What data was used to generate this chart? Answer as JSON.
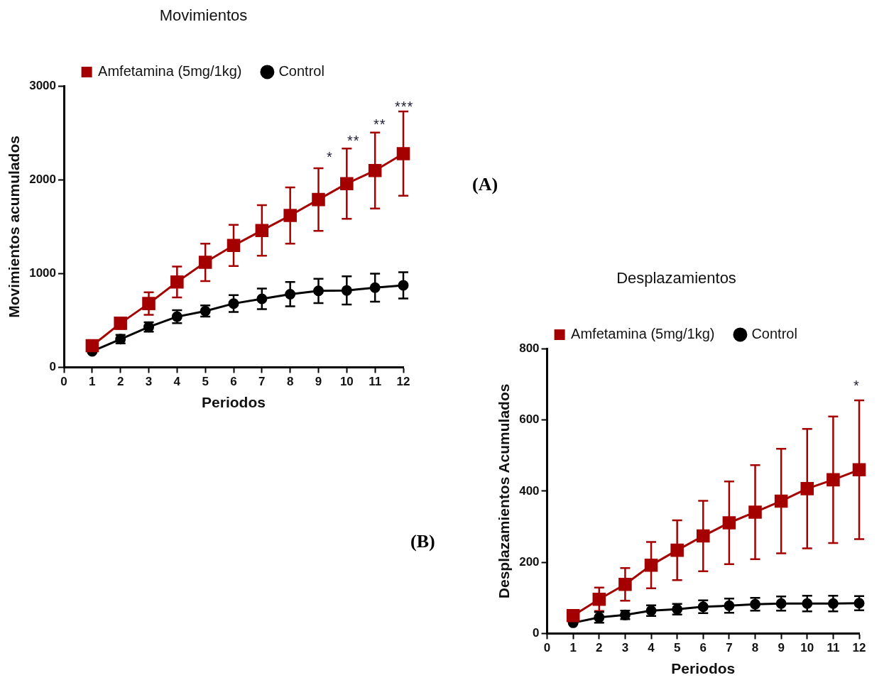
{
  "chart_data": [
    {
      "type": "line",
      "title": "Movimientos",
      "xlabel": "Periodos",
      "ylabel": "Movimientos acumulados",
      "x": [
        1,
        2,
        3,
        4,
        5,
        6,
        7,
        8,
        9,
        10,
        11,
        12
      ],
      "series": [
        {
          "name": "Amfetamina (5mg/1kg)",
          "color": "#a50000",
          "marker": "square",
          "values": [
            230,
            470,
            680,
            910,
            1120,
            1300,
            1460,
            1620,
            1790,
            1960,
            2100,
            2280
          ],
          "errors": [
            null,
            60,
            120,
            165,
            200,
            220,
            270,
            300,
            335,
            375,
            405,
            450
          ]
        },
        {
          "name": "Control",
          "color": "#000000",
          "marker": "circle",
          "values": [
            170,
            300,
            430,
            540,
            600,
            680,
            730,
            780,
            815,
            820,
            850,
            875
          ],
          "errors": [
            null,
            45,
            50,
            70,
            60,
            90,
            110,
            130,
            130,
            150,
            150,
            140
          ]
        }
      ],
      "xlim": [
        0,
        12
      ],
      "xticks": [
        0,
        1,
        2,
        3,
        4,
        5,
        6,
        7,
        8,
        9,
        10,
        11,
        12
      ],
      "ylim": [
        0,
        3000
      ],
      "yticks": [
        0,
        1000,
        2000,
        3000
      ],
      "grid": false,
      "legend": "top",
      "annotations": [
        "*",
        "**",
        "**",
        "***",
        "(A)"
      ]
    },
    {
      "type": "line",
      "title": "Desplazamientos",
      "xlabel": "Periodos",
      "ylabel": "Desplazamientos Acumulados",
      "x": [
        1,
        2,
        3,
        4,
        5,
        6,
        7,
        8,
        9,
        10,
        11,
        12
      ],
      "series": [
        {
          "name": "Amfetamina (5mg/1kg)",
          "color": "#a50000",
          "marker": "square",
          "values": [
            50,
            96,
            138,
            192,
            234,
            274,
            311,
            341,
            372,
            407,
            432,
            460
          ],
          "errors": [
            null,
            33,
            46,
            65,
            84,
            99,
            116,
            132,
            147,
            168,
            178,
            195
          ]
        },
        {
          "name": "Control",
          "color": "#000000",
          "marker": "circle",
          "values": [
            30,
            45,
            52,
            64,
            68,
            75,
            78,
            82,
            84,
            84,
            84,
            85
          ],
          "errors": [
            null,
            15,
            12,
            15,
            15,
            18,
            20,
            18,
            20,
            22,
            22,
            20
          ]
        }
      ],
      "xlim": [
        0,
        12
      ],
      "xticks": [
        0,
        1,
        2,
        3,
        4,
        5,
        6,
        7,
        8,
        9,
        10,
        11,
        12
      ],
      "ylim": [
        0,
        800
      ],
      "yticks": [
        0,
        200,
        400,
        600,
        800
      ],
      "grid": false,
      "legend": "top",
      "annotations": [
        "*",
        "(B)"
      ]
    }
  ]
}
